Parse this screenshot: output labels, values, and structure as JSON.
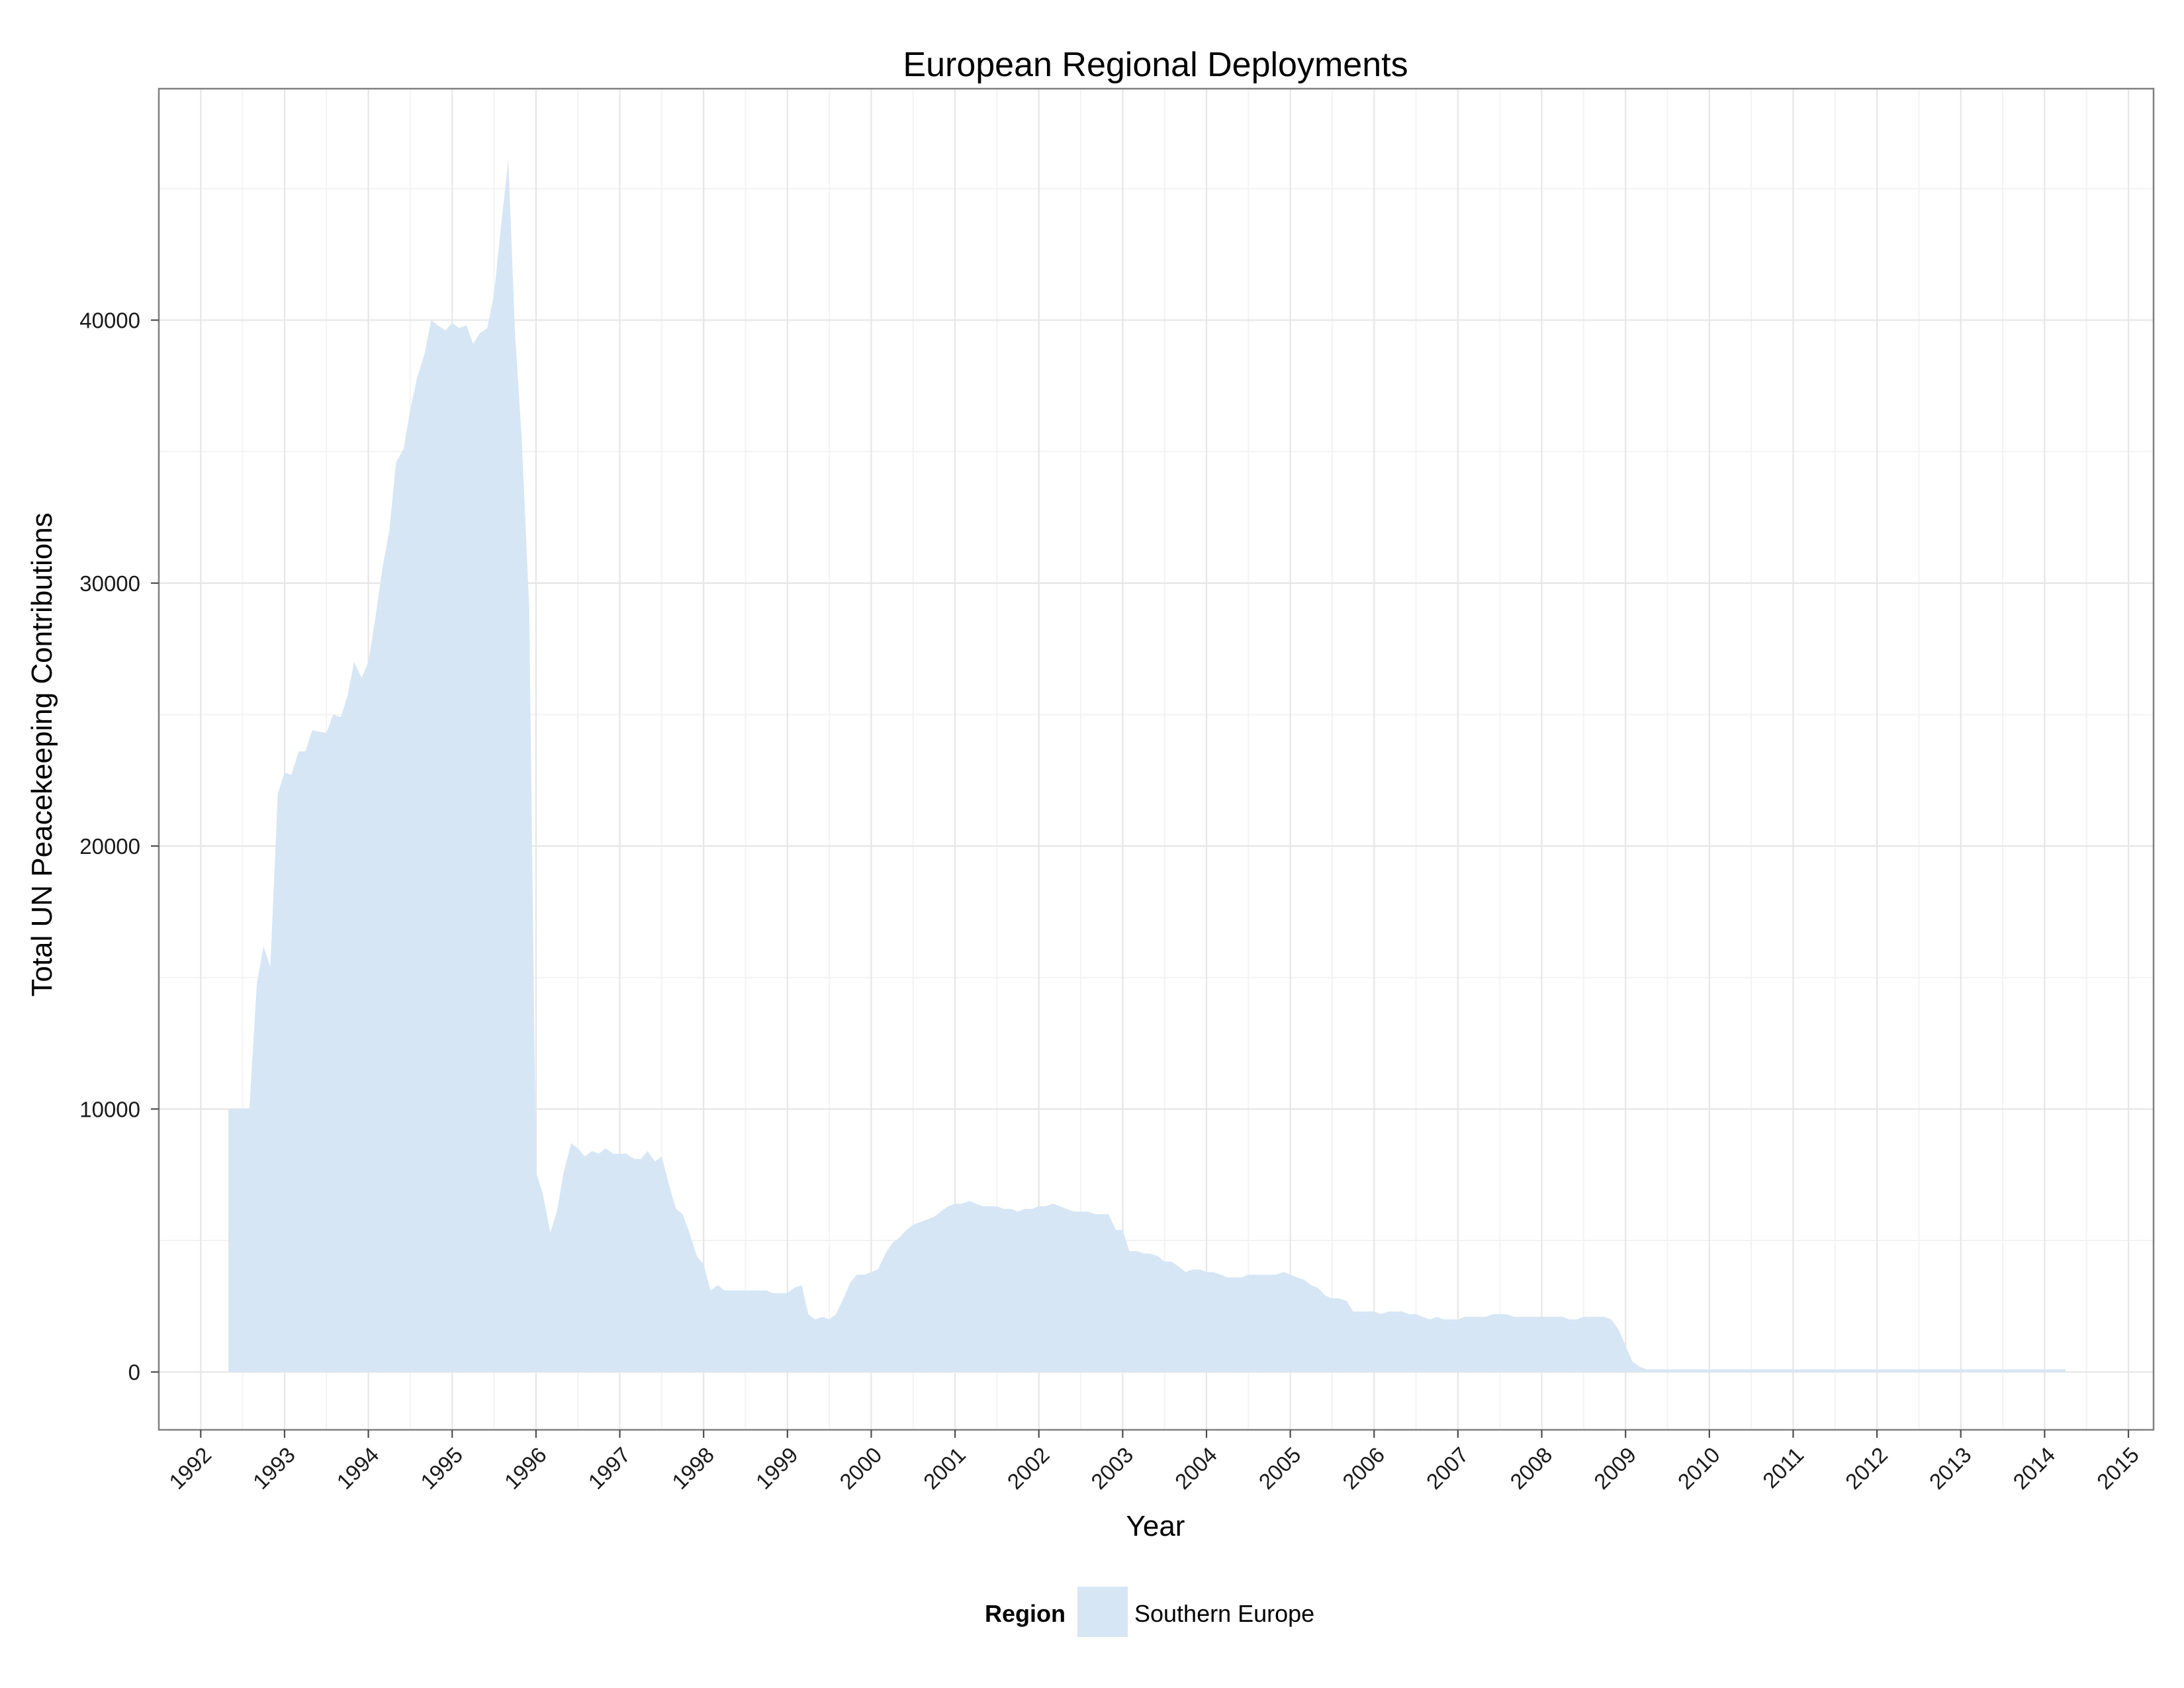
{
  "chart_data": {
    "type": "area",
    "title": "European Regional Deployments",
    "xlabel": "Year",
    "ylabel": "Total UN Peacekeeping Contributions",
    "xlim": [
      1991.5,
      2015.3
    ],
    "ylim": [
      -2200,
      48800
    ],
    "x_ticks": [
      "1992",
      "1993",
      "1994",
      "1995",
      "1996",
      "1997",
      "1998",
      "1999",
      "2000",
      "2001",
      "2002",
      "2003",
      "2004",
      "2005",
      "2006",
      "2007",
      "2008",
      "2009",
      "2010",
      "2011",
      "2012",
      "2013",
      "2014",
      "2015"
    ],
    "y_ticks": [
      0,
      10000,
      20000,
      30000,
      40000
    ],
    "y_tick_labels": [
      "0",
      "10000",
      "20000",
      "30000",
      "40000"
    ],
    "grid": true,
    "legend": {
      "title": "Region",
      "position": "bottom"
    },
    "series": [
      {
        "name": "Southern Europe",
        "color": "#d6e6f5",
        "points": [
          [
            1992.33,
            10000
          ],
          [
            1992.58,
            10000
          ],
          [
            1992.67,
            14800
          ],
          [
            1992.75,
            16200
          ],
          [
            1992.83,
            15400
          ],
          [
            1992.92,
            22000
          ],
          [
            1993.0,
            22800
          ],
          [
            1993.08,
            22700
          ],
          [
            1993.17,
            23600
          ],
          [
            1993.25,
            23600
          ],
          [
            1993.33,
            24400
          ],
          [
            1993.5,
            24300
          ],
          [
            1993.58,
            25000
          ],
          [
            1993.67,
            24900
          ],
          [
            1993.75,
            25700
          ],
          [
            1993.83,
            27000
          ],
          [
            1993.92,
            26400
          ],
          [
            1994.0,
            27000
          ],
          [
            1994.08,
            28600
          ],
          [
            1994.17,
            30600
          ],
          [
            1994.25,
            32000
          ],
          [
            1994.33,
            34600
          ],
          [
            1994.42,
            35100
          ],
          [
            1994.5,
            36600
          ],
          [
            1994.58,
            37800
          ],
          [
            1994.67,
            38700
          ],
          [
            1994.75,
            40000
          ],
          [
            1994.83,
            39800
          ],
          [
            1994.92,
            39600
          ],
          [
            1995.0,
            39900
          ],
          [
            1995.08,
            39700
          ],
          [
            1995.17,
            39800
          ],
          [
            1995.25,
            39100
          ],
          [
            1995.33,
            39500
          ],
          [
            1995.42,
            39700
          ],
          [
            1995.5,
            41000
          ],
          [
            1995.58,
            43500
          ],
          [
            1995.67,
            46100
          ],
          [
            1995.75,
            39500
          ],
          [
            1995.83,
            35500
          ],
          [
            1995.92,
            29000
          ],
          [
            1996.0,
            7600
          ],
          [
            1996.08,
            6800
          ],
          [
            1996.17,
            5300
          ],
          [
            1996.25,
            6100
          ],
          [
            1996.33,
            7600
          ],
          [
            1996.42,
            8700
          ],
          [
            1996.5,
            8500
          ],
          [
            1996.58,
            8200
          ],
          [
            1996.67,
            8400
          ],
          [
            1996.75,
            8300
          ],
          [
            1996.83,
            8500
          ],
          [
            1996.92,
            8300
          ],
          [
            1997.0,
            8300
          ],
          [
            1997.08,
            8300
          ],
          [
            1997.17,
            8100
          ],
          [
            1997.25,
            8100
          ],
          [
            1997.33,
            8400
          ],
          [
            1997.42,
            8000
          ],
          [
            1997.5,
            8200
          ],
          [
            1997.58,
            7200
          ],
          [
            1997.67,
            6200
          ],
          [
            1997.75,
            6000
          ],
          [
            1997.83,
            5300
          ],
          [
            1997.92,
            4400
          ],
          [
            1998.0,
            4100
          ],
          [
            1998.08,
            3100
          ],
          [
            1998.17,
            3300
          ],
          [
            1998.25,
            3100
          ],
          [
            1998.33,
            3100
          ],
          [
            1998.42,
            3100
          ],
          [
            1998.5,
            3100
          ],
          [
            1998.58,
            3100
          ],
          [
            1998.75,
            3100
          ],
          [
            1998.83,
            3000
          ],
          [
            1998.92,
            3000
          ],
          [
            1999.0,
            3000
          ],
          [
            1999.08,
            3200
          ],
          [
            1999.17,
            3300
          ],
          [
            1999.25,
            2200
          ],
          [
            1999.33,
            2000
          ],
          [
            1999.42,
            2100
          ],
          [
            1999.5,
            2000
          ],
          [
            1999.58,
            2200
          ],
          [
            1999.67,
            2800
          ],
          [
            1999.75,
            3400
          ],
          [
            1999.83,
            3700
          ],
          [
            1999.92,
            3700
          ],
          [
            2000.0,
            3800
          ],
          [
            2000.08,
            3900
          ],
          [
            2000.17,
            4500
          ],
          [
            2000.25,
            4900
          ],
          [
            2000.33,
            5100
          ],
          [
            2000.42,
            5400
          ],
          [
            2000.5,
            5600
          ],
          [
            2000.58,
            5700
          ],
          [
            2000.67,
            5800
          ],
          [
            2000.75,
            5900
          ],
          [
            2000.83,
            6100
          ],
          [
            2000.92,
            6300
          ],
          [
            2001.0,
            6400
          ],
          [
            2001.08,
            6400
          ],
          [
            2001.17,
            6500
          ],
          [
            2001.25,
            6400
          ],
          [
            2001.33,
            6300
          ],
          [
            2001.42,
            6300
          ],
          [
            2001.5,
            6300
          ],
          [
            2001.58,
            6200
          ],
          [
            2001.67,
            6200
          ],
          [
            2001.75,
            6100
          ],
          [
            2001.83,
            6200
          ],
          [
            2001.92,
            6200
          ],
          [
            2002.0,
            6300
          ],
          [
            2002.08,
            6300
          ],
          [
            2002.17,
            6400
          ],
          [
            2002.25,
            6300
          ],
          [
            2002.33,
            6200
          ],
          [
            2002.42,
            6100
          ],
          [
            2002.5,
            6100
          ],
          [
            2002.58,
            6100
          ],
          [
            2002.67,
            6000
          ],
          [
            2002.75,
            6000
          ],
          [
            2002.83,
            6000
          ],
          [
            2002.92,
            5400
          ],
          [
            2003.0,
            5400
          ],
          [
            2003.08,
            4600
          ],
          [
            2003.17,
            4600
          ],
          [
            2003.25,
            4500
          ],
          [
            2003.33,
            4500
          ],
          [
            2003.42,
            4400
          ],
          [
            2003.5,
            4200
          ],
          [
            2003.58,
            4200
          ],
          [
            2003.67,
            4000
          ],
          [
            2003.75,
            3800
          ],
          [
            2003.83,
            3900
          ],
          [
            2003.92,
            3900
          ],
          [
            2004.0,
            3800
          ],
          [
            2004.08,
            3800
          ],
          [
            2004.17,
            3700
          ],
          [
            2004.25,
            3600
          ],
          [
            2004.33,
            3600
          ],
          [
            2004.42,
            3600
          ],
          [
            2004.5,
            3700
          ],
          [
            2004.58,
            3700
          ],
          [
            2004.67,
            3700
          ],
          [
            2004.75,
            3700
          ],
          [
            2004.83,
            3700
          ],
          [
            2004.92,
            3800
          ],
          [
            2005.0,
            3700
          ],
          [
            2005.08,
            3600
          ],
          [
            2005.17,
            3500
          ],
          [
            2005.25,
            3300
          ],
          [
            2005.33,
            3200
          ],
          [
            2005.42,
            2900
          ],
          [
            2005.5,
            2800
          ],
          [
            2005.58,
            2800
          ],
          [
            2005.67,
            2700
          ],
          [
            2005.75,
            2300
          ],
          [
            2005.83,
            2300
          ],
          [
            2005.92,
            2300
          ],
          [
            2006.0,
            2300
          ],
          [
            2006.08,
            2200
          ],
          [
            2006.17,
            2300
          ],
          [
            2006.25,
            2300
          ],
          [
            2006.33,
            2300
          ],
          [
            2006.42,
            2200
          ],
          [
            2006.5,
            2200
          ],
          [
            2006.58,
            2100
          ],
          [
            2006.67,
            2000
          ],
          [
            2006.75,
            2100
          ],
          [
            2006.83,
            2000
          ],
          [
            2006.92,
            2000
          ],
          [
            2007.0,
            2000
          ],
          [
            2007.08,
            2100
          ],
          [
            2007.17,
            2100
          ],
          [
            2007.25,
            2100
          ],
          [
            2007.33,
            2100
          ],
          [
            2007.42,
            2200
          ],
          [
            2007.5,
            2200
          ],
          [
            2007.58,
            2200
          ],
          [
            2007.67,
            2100
          ],
          [
            2007.75,
            2100
          ],
          [
            2007.83,
            2100
          ],
          [
            2007.92,
            2100
          ],
          [
            2008.0,
            2100
          ],
          [
            2008.08,
            2100
          ],
          [
            2008.17,
            2100
          ],
          [
            2008.25,
            2100
          ],
          [
            2008.33,
            2000
          ],
          [
            2008.42,
            2000
          ],
          [
            2008.5,
            2100
          ],
          [
            2008.58,
            2100
          ],
          [
            2008.67,
            2100
          ],
          [
            2008.75,
            2100
          ],
          [
            2008.83,
            2000
          ],
          [
            2008.92,
            1600
          ],
          [
            2009.0,
            1000
          ],
          [
            2009.08,
            400
          ],
          [
            2009.17,
            200
          ],
          [
            2009.25,
            100
          ],
          [
            2009.33,
            100
          ],
          [
            2009.5,
            100
          ],
          [
            2009.75,
            100
          ],
          [
            2010.0,
            100
          ],
          [
            2011.0,
            100
          ],
          [
            2012.0,
            100
          ],
          [
            2013.0,
            100
          ],
          [
            2014.0,
            100
          ],
          [
            2014.25,
            100
          ]
        ]
      }
    ]
  }
}
